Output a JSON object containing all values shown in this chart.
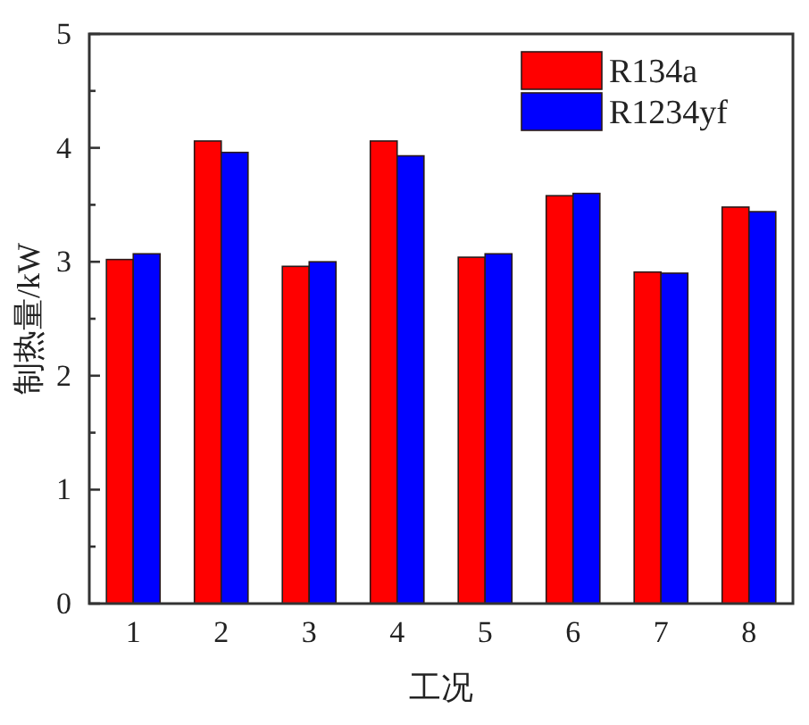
{
  "chart_data": {
    "type": "bar",
    "categories": [
      "1",
      "2",
      "3",
      "4",
      "5",
      "6",
      "7",
      "8"
    ],
    "series": [
      {
        "name": "R134a",
        "color": "#ff0000",
        "values": [
          3.02,
          4.06,
          2.96,
          4.06,
          3.04,
          3.58,
          2.91,
          3.48
        ]
      },
      {
        "name": "R1234yf",
        "color": "#0000ff",
        "values": [
          3.07,
          3.96,
          3.0,
          3.93,
          3.07,
          3.6,
          2.9,
          3.44
        ]
      }
    ],
    "xlabel": "工况",
    "ylabel": "制热量/kW",
    "ylim": [
      0,
      5
    ],
    "yticks": [
      0,
      {
        "value": 0.5,
        "label": null
      },
      1,
      {
        "value": 1.5,
        "label": null
      },
      2,
      {
        "value": 2.5,
        "label": null
      },
      3,
      {
        "value": 3.5,
        "label": null
      },
      4,
      {
        "value": 4.5,
        "label": null
      },
      5
    ],
    "grid": false,
    "legend": "top right"
  }
}
